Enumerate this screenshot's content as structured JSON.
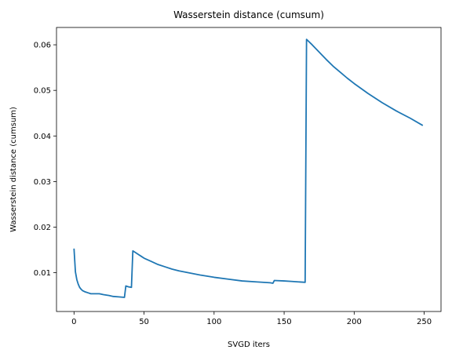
{
  "chart_data": {
    "type": "line",
    "title": "Wasserstein distance (cumsum)",
    "xlabel": "SVGD iters",
    "ylabel": "Wasserstein distance (cumsum)",
    "xlim": [
      -12.5,
      262
    ],
    "ylim": [
      0.0015,
      0.0638
    ],
    "x_ticks": [
      0,
      50,
      100,
      150,
      200,
      250
    ],
    "y_ticks": [
      0.01,
      0.02,
      0.03,
      0.04,
      0.05,
      0.06
    ],
    "y_tick_labels": [
      "0.01",
      "0.02",
      "0.03",
      "0.04",
      "0.05",
      "0.06"
    ],
    "grid": false,
    "color": "#1f77b4",
    "series": [
      {
        "x": [
          0,
          1,
          2,
          3,
          4,
          5,
          6,
          8,
          10,
          12,
          15,
          18,
          21,
          25,
          28,
          32,
          36,
          37,
          39,
          41,
          42,
          44,
          46,
          48,
          50,
          55,
          60,
          65,
          70,
          75,
          80,
          90,
          100,
          110,
          120,
          130,
          140,
          142,
          143,
          150,
          155,
          160,
          165,
          166,
          170,
          175,
          180,
          185,
          190,
          195,
          200,
          210,
          220,
          230,
          240,
          249
        ],
        "y": [
          0.0153,
          0.0102,
          0.0085,
          0.0075,
          0.0068,
          0.0064,
          0.0061,
          0.0058,
          0.0056,
          0.0054,
          0.0054,
          0.0054,
          0.0052,
          0.005,
          0.0048,
          0.0047,
          0.0046,
          0.0071,
          0.0069,
          0.0068,
          0.0148,
          0.0144,
          0.014,
          0.0136,
          0.0132,
          0.0125,
          0.0118,
          0.0113,
          0.0108,
          0.0104,
          0.0101,
          0.0095,
          0.009,
          0.0086,
          0.0082,
          0.008,
          0.0078,
          0.0077,
          0.0083,
          0.0082,
          0.0081,
          0.008,
          0.0079,
          0.0612,
          0.06,
          0.0584,
          0.0568,
          0.0553,
          0.054,
          0.0527,
          0.0515,
          0.0493,
          0.0473,
          0.0455,
          0.0439,
          0.0423
        ]
      }
    ]
  }
}
